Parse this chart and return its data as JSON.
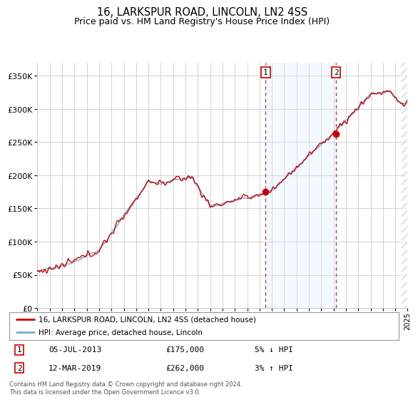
{
  "title": "16, LARKSPUR ROAD, LINCOLN, LN2 4SS",
  "subtitle": "Price paid vs. HM Land Registry's House Price Index (HPI)",
  "red_label": "16, LARKSPUR ROAD, LINCOLN, LN2 4SS (detached house)",
  "blue_label": "HPI: Average price, detached house, Lincoln",
  "transaction1": {
    "label": "1",
    "date": "05-JUL-2013",
    "price": "£175,000",
    "note": "5% ↓ HPI"
  },
  "transaction2": {
    "label": "2",
    "date": "12-MAR-2019",
    "price": "£262,000",
    "note": "3% ↑ HPI"
  },
  "footnote": "Contains HM Land Registry data © Crown copyright and database right 2024.\nThis data is licensed under the Open Government Licence v3.0.",
  "ylim": [
    0,
    370000
  ],
  "yticks": [
    0,
    50000,
    100000,
    150000,
    200000,
    250000,
    300000,
    350000
  ],
  "xlim_start": 1995,
  "xlim_end": 2025,
  "background_color": "#ffffff",
  "plot_bg_color": "#ffffff",
  "shade_color": "#ddeeff",
  "grid_color": "#cccccc",
  "red_color": "#cc0000",
  "blue_color": "#7aadcc",
  "trans1_x": 2013.5,
  "trans2_x": 2019.2,
  "t1_y": 175000,
  "t2_y": 262000
}
